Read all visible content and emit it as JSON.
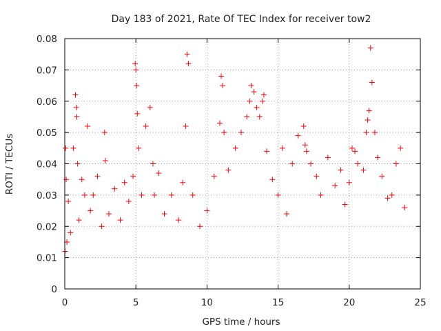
{
  "chart_data": {
    "type": "scatter",
    "title": "Day 183 of 2021, Rate Of TEC Index for receiver tow2",
    "xlabel": "GPS time / hours",
    "ylabel": "ROTI / TECUs",
    "xlim": [
      0,
      25
    ],
    "ylim": [
      0,
      0.08
    ],
    "xticks": [
      0,
      5,
      10,
      15,
      20,
      25
    ],
    "yticks": [
      0,
      0.01,
      0.02,
      0.03,
      0.04,
      0.05,
      0.06,
      0.07,
      0.08
    ],
    "xtick_labels": [
      "0",
      "5",
      "10",
      "15",
      "20",
      "25"
    ],
    "ytick_labels": [
      "0",
      "0.01",
      "0.02",
      "0.03",
      "0.04",
      "0.05",
      "0.06",
      "0.07",
      "0.08"
    ],
    "grid": true,
    "marker": "plus",
    "marker_color": "#ff0000",
    "series": [
      {
        "x": [
          0.02,
          0.05,
          0.1,
          0.15,
          0.25,
          0.4,
          0.6,
          0.75,
          0.8,
          0.85,
          0.9,
          1.0,
          1.2,
          1.4,
          1.6,
          1.8,
          2.0,
          2.3,
          2.6,
          2.8,
          2.85,
          3.1,
          3.5,
          3.9,
          4.2,
          4.5,
          4.8,
          4.95,
          5.0,
          5.05,
          5.1,
          5.2,
          5.4,
          5.7,
          6.0,
          6.2,
          6.3,
          6.6,
          7.0,
          7.5,
          8.0,
          8.3,
          8.5,
          8.6,
          8.7,
          9.0,
          9.5,
          10.0,
          10.5,
          10.9,
          11.0,
          11.1,
          11.2,
          11.5,
          12.0,
          12.4,
          12.8,
          13.0,
          13.1,
          13.3,
          13.5,
          13.7,
          13.9,
          14.0,
          14.2,
          14.6,
          15.0,
          15.3,
          15.6,
          16.0,
          16.4,
          16.8,
          16.9,
          17.0,
          17.3,
          17.7,
          18.0,
          18.5,
          19.0,
          19.4,
          19.7,
          20.0,
          20.2,
          20.4,
          20.6,
          21.0,
          21.2,
          21.3,
          21.4,
          21.5,
          21.6,
          21.8,
          22.0,
          22.3,
          22.7,
          23.0,
          23.3,
          23.6,
          23.9
        ],
        "y": [
          0.012,
          0.045,
          0.035,
          0.015,
          0.028,
          0.018,
          0.045,
          0.062,
          0.058,
          0.055,
          0.04,
          0.022,
          0.035,
          0.03,
          0.052,
          0.025,
          0.03,
          0.036,
          0.02,
          0.05,
          0.041,
          0.024,
          0.032,
          0.022,
          0.034,
          0.028,
          0.036,
          0.072,
          0.07,
          0.065,
          0.056,
          0.045,
          0.03,
          0.052,
          0.058,
          0.04,
          0.03,
          0.037,
          0.024,
          0.03,
          0.022,
          0.034,
          0.052,
          0.075,
          0.072,
          0.03,
          0.02,
          0.025,
          0.036,
          0.053,
          0.068,
          0.065,
          0.05,
          0.038,
          0.045,
          0.05,
          0.055,
          0.06,
          0.065,
          0.063,
          0.058,
          0.055,
          0.06,
          0.062,
          0.044,
          0.035,
          0.03,
          0.045,
          0.024,
          0.04,
          0.049,
          0.052,
          0.046,
          0.044,
          0.04,
          0.036,
          0.03,
          0.042,
          0.033,
          0.038,
          0.027,
          0.034,
          0.045,
          0.044,
          0.04,
          0.038,
          0.05,
          0.054,
          0.057,
          0.077,
          0.066,
          0.05,
          0.042,
          0.036,
          0.029,
          0.03,
          0.04,
          0.045,
          0.026
        ]
      }
    ]
  }
}
